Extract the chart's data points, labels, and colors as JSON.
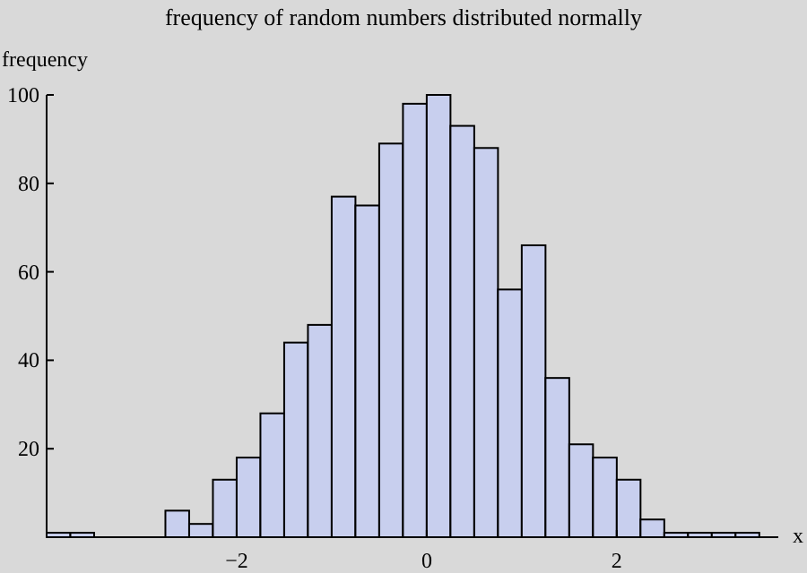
{
  "chart_data": {
    "type": "histogram",
    "title": "frequency of random numbers distributed normally",
    "xlabel": "x",
    "ylabel": "frequency",
    "bins": [
      -4,
      -3.75,
      -3.5,
      -3.25,
      -3,
      -2.75,
      -2.5,
      -2.25,
      -2,
      -1.75,
      -1.5,
      -1.25,
      -1,
      -0.75,
      -0.5,
      -0.25,
      0,
      0.25,
      0.5,
      0.75,
      1,
      1.25,
      1.5,
      1.75,
      2,
      2.25,
      2.5,
      2.75,
      3,
      3.25,
      3.5
    ],
    "values": [
      1,
      1,
      0,
      0,
      0,
      6,
      3,
      13,
      18,
      28,
      44,
      48,
      77,
      75,
      89,
      98,
      100,
      93,
      88,
      56,
      66,
      36,
      21,
      18,
      13,
      4,
      1,
      1,
      1,
      1
    ],
    "color": "#c8cfee",
    "xlim": [
      -4,
      3.7
    ],
    "ylim": [
      0,
      100
    ],
    "xticks": [
      -2,
      0,
      2
    ],
    "yticks": [
      20,
      40,
      60,
      80,
      100
    ],
    "grid": false
  }
}
